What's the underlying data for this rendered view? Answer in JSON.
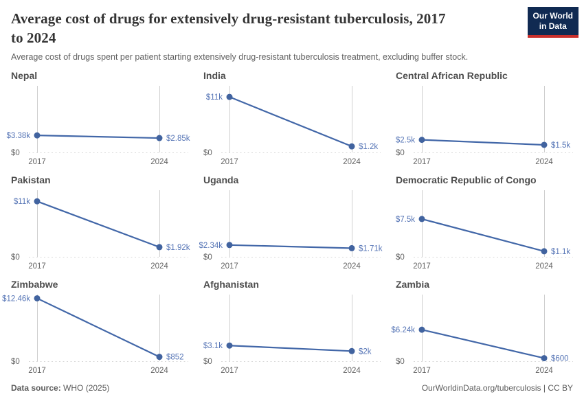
{
  "header": {
    "title": "Average cost of drugs for extensively drug-resistant tuberculosis, 2017 to 2024",
    "title_line1": "Average cost of drugs for extensively drug-resistant tuberculosis, 2017",
    "title_line2": "to 2024",
    "subtitle": "Average cost of drugs spent per patient starting extensively drug-resistant tuberculosis treatment, excluding buffer stock.",
    "logo": {
      "line1": "Our World",
      "line2": "in Data"
    }
  },
  "footer": {
    "source_label": "Data source:",
    "source_value": "WHO (2025)",
    "right_text": "OurWorldinData.org/tuberculosis | CC BY"
  },
  "colors": {
    "line": "#4267a8",
    "dot": "#41639f",
    "value_label": "#5675b6",
    "gridline": "#cfcfcf",
    "baseline_dotted": "#d8d8d8",
    "axis_text": "#636363",
    "logo_bg": "#102a52",
    "logo_bar": "#c9302c"
  },
  "chart_data": {
    "type": "line",
    "x": [
      2017,
      2024
    ],
    "x_tick_labels": [
      "2017",
      "2024"
    ],
    "y_zero_label": "$0",
    "shared_ylim": [
      0,
      13200
    ],
    "grid": "x-gridlines and dotted zero baseline",
    "legend_position": "none",
    "series": [
      {
        "name": "Nepal",
        "values": [
          3380,
          2850
        ],
        "labels": [
          "$3.38k",
          "$2.85k"
        ]
      },
      {
        "name": "India",
        "values": [
          11000,
          1200
        ],
        "labels": [
          "$11k",
          "$1.2k"
        ]
      },
      {
        "name": "Central African Republic",
        "values": [
          2500,
          1500
        ],
        "labels": [
          "$2.5k",
          "$1.5k"
        ]
      },
      {
        "name": "Pakistan",
        "values": [
          11000,
          1920
        ],
        "labels": [
          "$11k",
          "$1.92k"
        ]
      },
      {
        "name": "Uganda",
        "values": [
          2340,
          1710
        ],
        "labels": [
          "$2.34k",
          "$1.71k"
        ]
      },
      {
        "name": "Democratic Republic of Congo",
        "values": [
          7500,
          1100
        ],
        "labels": [
          "$7.5k",
          "$1.1k"
        ]
      },
      {
        "name": "Zimbabwe",
        "values": [
          12460,
          852
        ],
        "labels": [
          "$12.46k",
          "$852"
        ]
      },
      {
        "name": "Afghanistan",
        "values": [
          3100,
          2000
        ],
        "labels": [
          "$3.1k",
          "$2k"
        ]
      },
      {
        "name": "Zambia",
        "values": [
          6240,
          600
        ],
        "labels": [
          "$6.24k",
          "$600"
        ]
      }
    ]
  }
}
